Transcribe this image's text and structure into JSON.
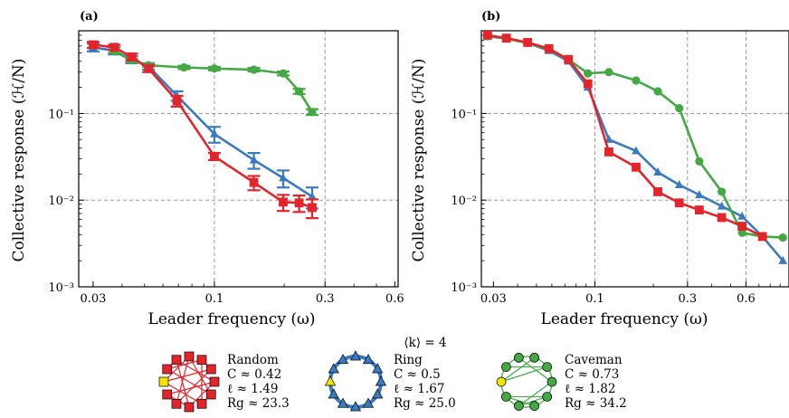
{
  "colors": {
    "random": "#e3242b",
    "ring": "#3a7bbf",
    "caveman": "#44a844",
    "leader": "#f5e400"
  },
  "panel_labels": [
    "(a)",
    "(b)"
  ],
  "ylabel": "Collective response (ℋ/N)",
  "xlabel": "Leader frequency (ω)",
  "legend": {
    "header": "⟨k⟩ = 4",
    "networks": [
      {
        "key": "random",
        "name": "Random",
        "C": "C ≈ 0.42",
        "l": "ℓ ≈ 1.49",
        "Rg": "Rg ≈ 23.3"
      },
      {
        "key": "ring",
        "name": "Ring",
        "C": "C ≈ 0.5",
        "l": "ℓ ≈ 1.67",
        "Rg": "Rg ≈ 25.0"
      },
      {
        "key": "caveman",
        "name": "Caveman",
        "C": "C ≈ 0.73",
        "l": "ℓ ≈ 1.82",
        "Rg": "Rg ≈ 34.2"
      }
    ]
  },
  "chart_data": [
    {
      "panel": "(a)",
      "type": "line",
      "xscale": "log",
      "yscale": "log",
      "xlim": [
        0.026,
        0.62
      ],
      "ylim": [
        0.001,
        0.9
      ],
      "xticks": [
        "0.03",
        "0.1",
        "0.3",
        "0.6"
      ],
      "yticks": [
        "10⁻³",
        "10⁻²",
        "10⁻¹"
      ],
      "grid": true,
      "series": [
        {
          "key": "ring",
          "marker": "triangle",
          "x": [
            0.03,
            0.037,
            0.044,
            0.052,
            0.069,
            0.1,
            0.148,
            0.198,
            0.264
          ],
          "y": [
            0.58,
            0.53,
            0.42,
            0.35,
            0.16,
            0.058,
            0.029,
            0.018,
            0.011
          ],
          "err": [
            0.06,
            0.05,
            0.04,
            0.03,
            0.02,
            0.012,
            0.006,
            0.004,
            0.003
          ]
        },
        {
          "key": "caveman",
          "marker": "circle",
          "x": [
            0.037,
            0.044,
            0.052,
            0.074,
            0.1,
            0.148,
            0.198,
            0.232,
            0.264
          ],
          "y": [
            0.52,
            0.41,
            0.36,
            0.34,
            0.33,
            0.32,
            0.29,
            0.18,
            0.104
          ],
          "err": [
            0.02,
            0.02,
            0.015,
            0.015,
            0.015,
            0.015,
            0.015,
            0.012,
            0.008
          ]
        },
        {
          "key": "random",
          "marker": "square",
          "x": [
            0.03,
            0.037,
            0.044,
            0.052,
            0.069,
            0.1,
            0.148,
            0.198,
            0.232,
            0.264
          ],
          "y": [
            0.62,
            0.58,
            0.45,
            0.33,
            0.14,
            0.032,
            0.016,
            0.0095,
            0.0093,
            0.0082
          ],
          "err": [
            0.05,
            0.04,
            0.04,
            0.03,
            0.02,
            0.003,
            0.003,
            0.002,
            0.002,
            0.002
          ]
        }
      ]
    },
    {
      "panel": "(b)",
      "type": "line",
      "xscale": "log",
      "yscale": "log",
      "xlim": [
        0.026,
        1.0
      ],
      "ylim": [
        0.001,
        0.9
      ],
      "xticks": [
        "0.03",
        "0.1",
        "0.3",
        "0.6"
      ],
      "yticks": [
        "10⁻³",
        "10⁻²",
        "10⁻¹"
      ],
      "grid": true,
      "series": [
        {
          "key": "ring",
          "marker": "triangle",
          "x": [
            0.028,
            0.035,
            0.045,
            0.058,
            0.073,
            0.092,
            0.118,
            0.163,
            0.211,
            0.272,
            0.345,
            0.45,
            0.573,
            0.73,
            0.93
          ],
          "y": [
            0.78,
            0.73,
            0.65,
            0.53,
            0.4,
            0.2,
            0.05,
            0.037,
            0.021,
            0.015,
            0.0115,
            0.0085,
            0.0065,
            0.0038,
            0.002
          ]
        },
        {
          "key": "caveman",
          "marker": "circle",
          "x": [
            0.028,
            0.035,
            0.045,
            0.058,
            0.073,
            0.092,
            0.118,
            0.163,
            0.211,
            0.272,
            0.345,
            0.45,
            0.573,
            0.73,
            0.93
          ],
          "y": [
            0.78,
            0.73,
            0.65,
            0.55,
            0.42,
            0.29,
            0.3,
            0.24,
            0.18,
            0.115,
            0.028,
            0.0125,
            0.0042,
            0.0038,
            0.0037
          ]
        },
        {
          "key": "random",
          "marker": "square",
          "x": [
            0.028,
            0.035,
            0.045,
            0.058,
            0.073,
            0.092,
            0.118,
            0.163,
            0.211,
            0.272,
            0.345,
            0.45,
            0.573,
            0.73
          ],
          "y": [
            0.8,
            0.74,
            0.66,
            0.56,
            0.42,
            0.22,
            0.036,
            0.024,
            0.0125,
            0.0093,
            0.0077,
            0.0063,
            0.005,
            0.0038
          ]
        }
      ]
    }
  ]
}
